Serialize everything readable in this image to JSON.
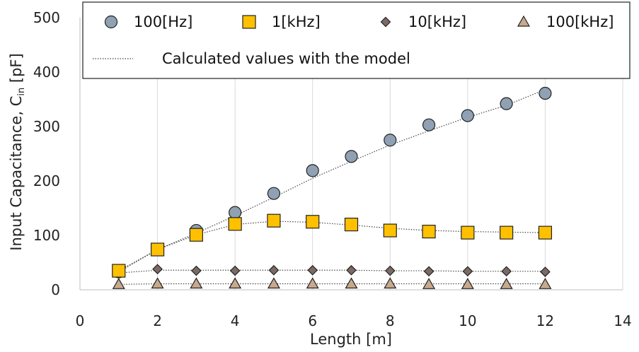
{
  "chart_data": {
    "type": "scatter",
    "xlabel": "Length [m]",
    "ylabel": "Input Capacitance, C",
    "ylabel_sub": "in",
    "ylabel_unit": " [pF]",
    "xlim": [
      0,
      14
    ],
    "ylim": [
      0,
      500
    ],
    "xticks": [
      0,
      2,
      4,
      6,
      8,
      10,
      12,
      14
    ],
    "yticks": [
      0,
      100,
      200,
      300,
      400,
      500
    ],
    "grid": "vertical",
    "legend_position": "top",
    "x": [
      1,
      2,
      3,
      4,
      5,
      6,
      7,
      8,
      9,
      10,
      11,
      12
    ],
    "series": [
      {
        "name": "100[Hz]",
        "marker": "circle",
        "color": "#8fa1b3",
        "values": [
          33,
          74,
          109,
          142,
          177,
          219,
          245,
          275,
          303,
          320,
          342,
          361
        ]
      },
      {
        "name": "1[kHz]",
        "marker": "square",
        "color": "#ffc000",
        "values": [
          35,
          74,
          101,
          121,
          127,
          125,
          120,
          109,
          107,
          105,
          105,
          105
        ]
      },
      {
        "name": "10[kHz]",
        "marker": "diamond",
        "color": "#7b6a64",
        "values": [
          31,
          38,
          35,
          35,
          36,
          36,
          36,
          35,
          34,
          34,
          34,
          33
        ]
      },
      {
        "name": "100[kHz]",
        "marker": "triangle",
        "color": "#c8a98c",
        "values": [
          10,
          11,
          11,
          11,
          11,
          11,
          11,
          11,
          10,
          10,
          10,
          10
        ]
      }
    ],
    "model_curves": [
      [
        33,
        74,
        104,
        136,
        170,
        205,
        236,
        266,
        292,
        317,
        339,
        368
      ],
      [
        35,
        74,
        101,
        120,
        126,
        124,
        119,
        113,
        109,
        107,
        106,
        105
      ],
      [
        31,
        36,
        36,
        36,
        36,
        36,
        36,
        35,
        35,
        34,
        34,
        34
      ],
      [
        10,
        11,
        11,
        11,
        11,
        11,
        11,
        11,
        11,
        11,
        11,
        11
      ]
    ],
    "model_label": "Calculated values with the model"
  }
}
